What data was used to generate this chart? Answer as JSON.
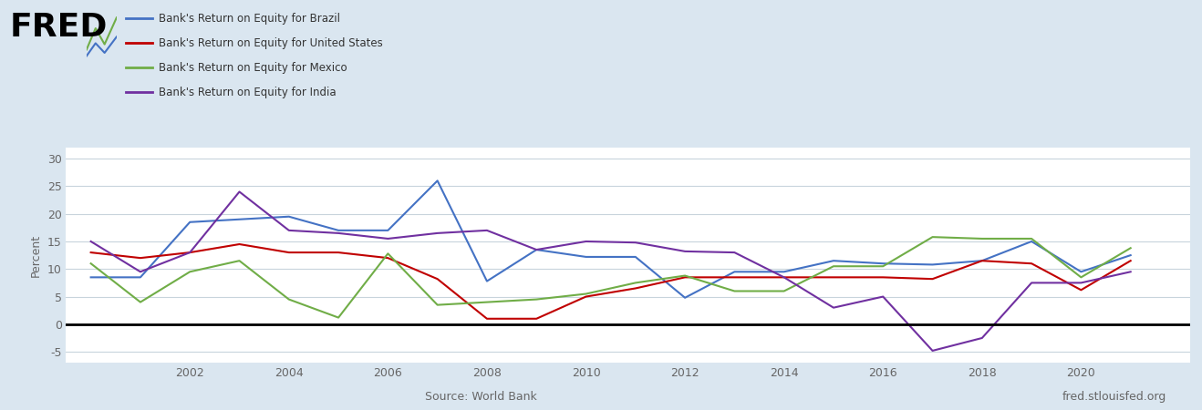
{
  "years": [
    2000,
    2001,
    2002,
    2003,
    2004,
    2005,
    2006,
    2007,
    2008,
    2009,
    2010,
    2011,
    2012,
    2013,
    2014,
    2015,
    2016,
    2017,
    2018,
    2019,
    2020,
    2021
  ],
  "brazil": [
    8.5,
    8.5,
    18.5,
    19.0,
    19.5,
    17.0,
    17.0,
    26.0,
    7.8,
    13.5,
    12.2,
    12.2,
    4.8,
    9.5,
    9.5,
    11.5,
    11.0,
    10.8,
    11.5,
    15.0,
    9.5,
    12.5
  ],
  "usa": [
    13.0,
    12.0,
    13.0,
    14.5,
    13.0,
    13.0,
    12.0,
    8.2,
    1.0,
    1.0,
    5.0,
    6.5,
    8.5,
    8.5,
    8.5,
    8.5,
    8.5,
    8.2,
    11.5,
    11.0,
    6.2,
    11.5
  ],
  "mexico": [
    11.0,
    4.0,
    9.5,
    11.5,
    4.5,
    1.2,
    12.8,
    3.5,
    4.0,
    4.5,
    5.5,
    7.5,
    8.8,
    6.0,
    6.0,
    10.5,
    10.5,
    15.8,
    15.5,
    15.5,
    8.5,
    13.8
  ],
  "india": [
    15.0,
    9.5,
    13.0,
    24.0,
    17.0,
    16.5,
    15.5,
    16.5,
    17.0,
    13.5,
    15.0,
    14.8,
    13.2,
    13.0,
    8.5,
    3.0,
    5.0,
    -4.8,
    -2.5,
    7.5,
    7.5,
    9.5
  ],
  "brazil_color": "#4472C4",
  "usa_color": "#C00000",
  "mexico_color": "#70AD47",
  "india_color": "#7030A0",
  "background_outer": "#dae6f0",
  "background_inner": "#FFFFFF",
  "grid_color": "#C8D4DC",
  "ylabel": "Percent",
  "ylim": [
    -7,
    32
  ],
  "yticks": [
    -5,
    0,
    5,
    10,
    15,
    20,
    25,
    30
  ],
  "source_left": "Source: World Bank",
  "source_right": "fred.stlouisfed.org",
  "legend_labels": [
    "Bank's Return on Equity for Brazil",
    "Bank's Return on Equity for United States",
    "Bank's Return on Equity for Mexico",
    "Bank's Return on Equity for India"
  ],
  "legend_colors": [
    "#4472C4",
    "#C00000",
    "#70AD47",
    "#7030A0"
  ]
}
